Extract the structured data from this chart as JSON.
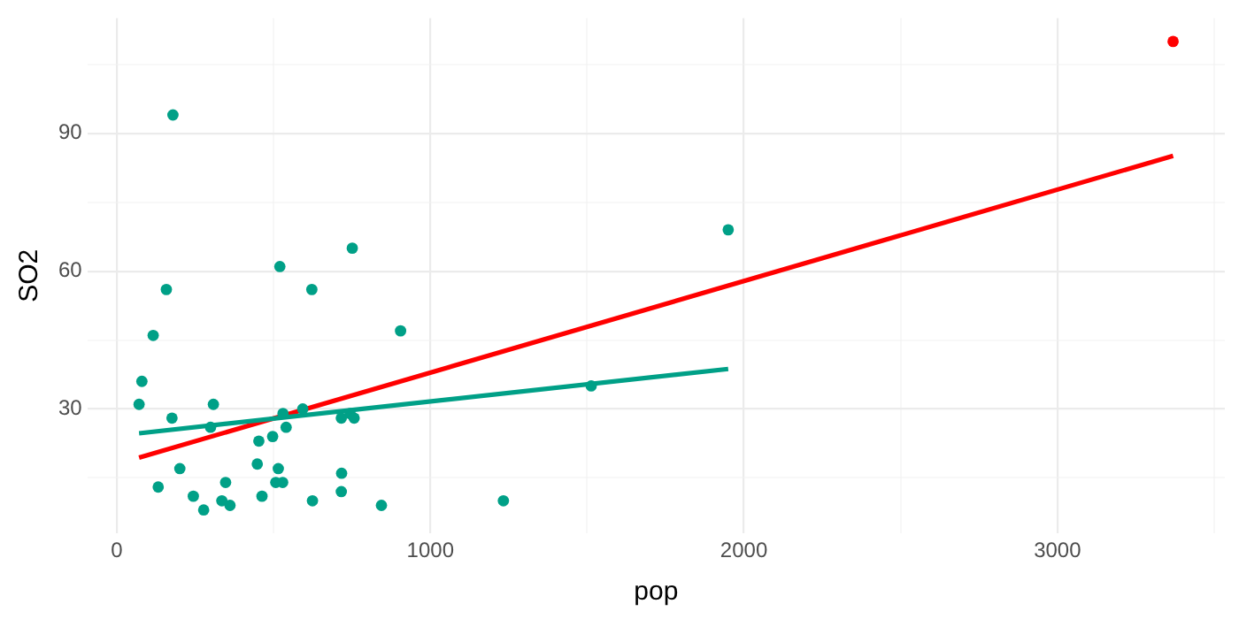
{
  "chart_data": {
    "type": "scatter",
    "xlabel": "pop",
    "ylabel": "SO2",
    "xlim": [
      -94,
      3534
    ],
    "ylim": [
      2.9,
      115.1
    ],
    "xticks": [
      0,
      {
        "value": 500,
        "label": null
      },
      1000,
      {
        "value": 1500,
        "label": null
      },
      2000,
      {
        "value": 2500,
        "label": null
      },
      3000,
      {
        "value": 3500,
        "label": null
      }
    ],
    "yticks": [
      {
        "value": 15,
        "label": null
      },
      30,
      {
        "value": 45,
        "label": null
      },
      60,
      {
        "value": 75,
        "label": null
      },
      90,
      {
        "value": 105,
        "label": null
      }
    ],
    "grid": true,
    "legend": false,
    "marker": "circle",
    "series": [
      {
        "color": "#00a087",
        "x": [
          116,
          244,
          497,
          905,
          463,
          71,
          453,
          751,
          540,
          844,
          515,
          201,
          1513,
          158,
          1233,
          716,
          529,
          507,
          132,
          593,
          624,
          335,
          717,
          744,
          448,
          361,
          308,
          347,
          1950,
          520,
          179,
          299,
          176,
          716,
          530,
          622,
          757,
          277,
          80
        ],
        "values": [
          46,
          11,
          24,
          47,
          11,
          31,
          23,
          65,
          26,
          9,
          17,
          17,
          35,
          56,
          10,
          28,
          14,
          14,
          13,
          30,
          10,
          10,
          16,
          29,
          18,
          9,
          31,
          14,
          69,
          61,
          94,
          26,
          28,
          12,
          29,
          56,
          28,
          8,
          36
        ]
      },
      {
        "color": "#ff0000",
        "x": [
          3369
        ],
        "values": [
          110
        ]
      },
      {
        "type": "line",
        "color": "#00a087",
        "marker": "none",
        "x": [
          71,
          1950
        ],
        "values": [
          24.7,
          38.7
        ]
      },
      {
        "type": "line",
        "color": "#ff0000",
        "marker": "none",
        "x": [
          71,
          3369
        ],
        "values": [
          19.4,
          85.1
        ]
      }
    ]
  }
}
